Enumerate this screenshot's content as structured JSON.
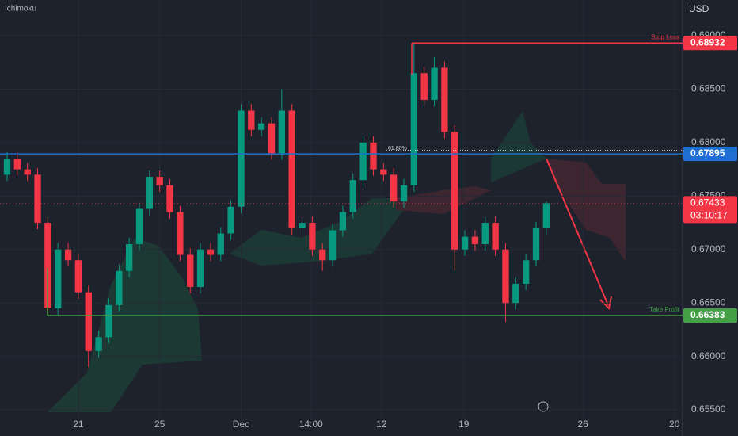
{
  "chart_data": {
    "type": "candlestick",
    "title": "Ichimoku",
    "currency": "USD",
    "xlim": [
      -3.85,
      29.7
    ],
    "xticks": [
      {
        "value": 0,
        "label": "21"
      },
      {
        "value": 4,
        "label": "25"
      },
      {
        "value": 8,
        "label": "Dec"
      },
      {
        "value": 11.44,
        "label": "14:00"
      },
      {
        "value": 14.9,
        "label": "12"
      },
      {
        "value": 18.95,
        "label": "19"
      },
      {
        "value": 24.8,
        "label": "26"
      },
      {
        "value": 29.3,
        "label": "20"
      }
    ],
    "ylim": [
      0.65404,
      0.69334
    ],
    "yticks": [
      {
        "value": 0.655,
        "label": "0.65500"
      },
      {
        "value": 0.66,
        "label": "0.66000"
      },
      {
        "value": 0.665,
        "label": "0.66500"
      },
      {
        "value": 0.67,
        "label": "0.67000"
      },
      {
        "value": 0.675,
        "label": "0.67500"
      },
      {
        "value": 0.68,
        "label": "0.68000"
      },
      {
        "value": 0.685,
        "label": "0.68500"
      },
      {
        "value": 0.69,
        "label": "0.69000"
      }
    ],
    "up_color": "#089981",
    "down_color": "#f23645",
    "x": [
      -3.5,
      -3,
      -2.5,
      -2,
      -1.5,
      -1,
      -0.5,
      0,
      0.5,
      1,
      1.5,
      2,
      2.5,
      3,
      3.5,
      4,
      4.5,
      5,
      5.5,
      6,
      6.5,
      7,
      7.5,
      8,
      8.5,
      9,
      9.5,
      10,
      10.5,
      11,
      11.5,
      12,
      12.5,
      13,
      13.5,
      14,
      14.5,
      15,
      15.5,
      16,
      16.5,
      17,
      17.5,
      18,
      18.5,
      19,
      19.5,
      20,
      20.5,
      21,
      21.5,
      22,
      22.5,
      23
    ],
    "open": [
      0.677,
      0.6785,
      0.6775,
      0.677,
      0.6725,
      0.6645,
      0.67,
      0.669,
      0.666,
      0.6605,
      0.6618,
      0.6648,
      0.668,
      0.6705,
      0.6738,
      0.6768,
      0.676,
      0.6735,
      0.6695,
      0.6665,
      0.67,
      0.6695,
      0.6715,
      0.674,
      0.683,
      0.6812,
      0.6818,
      0.679,
      0.683,
      0.672,
      0.6725,
      0.67,
      0.669,
      0.6718,
      0.6735,
      0.6765,
      0.68,
      0.6775,
      0.677,
      0.6745,
      0.676,
      0.6865,
      0.684,
      0.687,
      0.681,
      0.67,
      0.6712,
      0.6705,
      0.6725,
      0.67,
      0.665,
      0.6668,
      0.669,
      0.672
    ],
    "high": [
      0.6791,
      0.6791,
      0.6781,
      0.6776,
      0.6731,
      0.6706,
      0.6706,
      0.6696,
      0.6666,
      0.6624,
      0.6654,
      0.6686,
      0.6711,
      0.6744,
      0.6774,
      0.6774,
      0.6766,
      0.6741,
      0.6701,
      0.6706,
      0.6706,
      0.6721,
      0.6746,
      0.6836,
      0.6836,
      0.6824,
      0.6824,
      0.685,
      0.6836,
      0.6731,
      0.6731,
      0.6706,
      0.6724,
      0.6741,
      0.6771,
      0.6806,
      0.6806,
      0.6781,
      0.6776,
      0.6766,
      0.6893,
      0.6871,
      0.688,
      0.6876,
      0.6816,
      0.6718,
      0.6718,
      0.6731,
      0.6731,
      0.6706,
      0.6674,
      0.6696,
      0.6726,
      0.6745
    ],
    "low": [
      0.6764,
      0.6769,
      0.6764,
      0.6719,
      0.6639,
      0.6639,
      0.6684,
      0.6654,
      0.659,
      0.6599,
      0.6612,
      0.6642,
      0.6674,
      0.6699,
      0.6732,
      0.6754,
      0.6729,
      0.6689,
      0.6659,
      0.6659,
      0.6689,
      0.6689,
      0.6709,
      0.6734,
      0.6806,
      0.6806,
      0.6784,
      0.6784,
      0.6714,
      0.6714,
      0.6694,
      0.668,
      0.6684,
      0.6712,
      0.6729,
      0.6759,
      0.6769,
      0.6764,
      0.6739,
      0.6739,
      0.6754,
      0.6834,
      0.6834,
      0.6804,
      0.668,
      0.6694,
      0.6699,
      0.6699,
      0.6694,
      0.6632,
      0.6644,
      0.6662,
      0.6684,
      0.6714
    ],
    "close": [
      0.6785,
      0.6775,
      0.677,
      0.6725,
      0.6645,
      0.67,
      0.669,
      0.666,
      0.6605,
      0.6618,
      0.6648,
      0.668,
      0.6705,
      0.6738,
      0.6768,
      0.676,
      0.6735,
      0.6695,
      0.6665,
      0.67,
      0.6695,
      0.6715,
      0.674,
      0.683,
      0.6812,
      0.6818,
      0.679,
      0.683,
      0.672,
      0.6725,
      0.67,
      0.669,
      0.6718,
      0.6735,
      0.6765,
      0.68,
      0.6775,
      0.677,
      0.6745,
      0.676,
      0.6865,
      0.684,
      0.687,
      0.681,
      0.67,
      0.6712,
      0.6705,
      0.6725,
      0.67,
      0.665,
      0.6668,
      0.669,
      0.672,
      0.67433
    ],
    "levels": [
      {
        "label": "Stop Loss",
        "value": 0.68932,
        "color": "#f23645"
      },
      {
        "value": 0.67895,
        "color": "#1e6fd1"
      },
      {
        "label": "Take Profit",
        "value": 0.66383,
        "color": "#43a047"
      }
    ],
    "fib": {
      "label": "61.80%",
      "value": 0.6793
    },
    "last_price": {
      "value": 0.67433,
      "countdown": "03:10:17",
      "color": "#f23645"
    }
  }
}
